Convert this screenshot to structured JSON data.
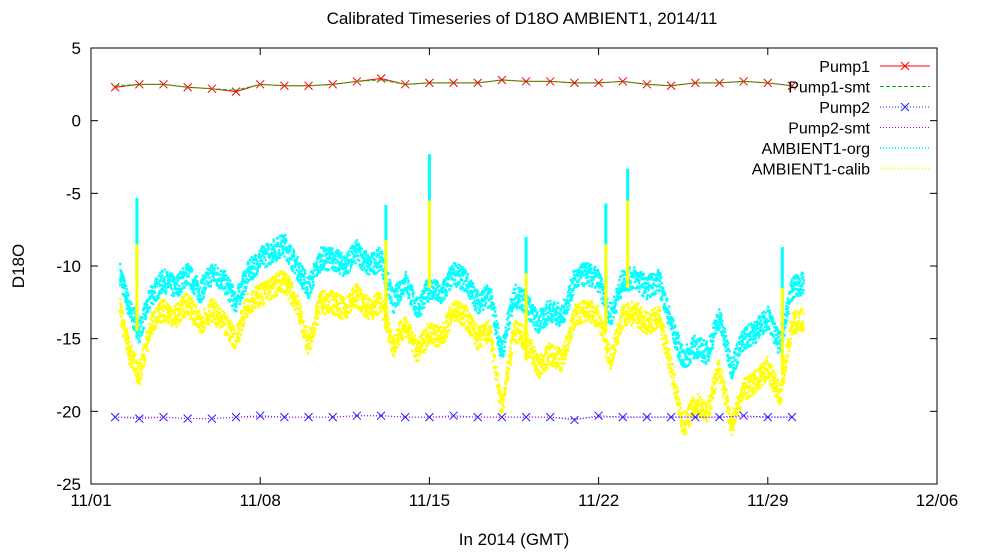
{
  "chart_data": {
    "type": "line",
    "title": "Calibrated Timeseries of D18O AMBIENT1, 2014/11",
    "xlabel": "In 2014 (GMT)",
    "ylabel": "D18O",
    "xlim": [
      "2014-11-01",
      "2014-12-06"
    ],
    "ylim": [
      -25,
      5
    ],
    "x_ticks": [
      "11/01",
      "11/08",
      "11/15",
      "11/22",
      "11/29",
      "12/06"
    ],
    "y_ticks": [
      "5",
      "0",
      "-5",
      "-10",
      "-15",
      "-20",
      "-25"
    ],
    "grid": false,
    "legend_position": "top-right",
    "series": [
      {
        "name": "Pump1",
        "color": "#ff0000",
        "marker": "x",
        "line": "solid",
        "x": [
          "2014-11-02",
          "2014-11-03",
          "2014-11-04",
          "2014-11-05",
          "2014-11-06",
          "2014-11-07",
          "2014-11-08",
          "2014-11-09",
          "2014-11-10",
          "2014-11-11",
          "2014-11-12",
          "2014-11-13",
          "2014-11-14",
          "2014-11-15",
          "2014-11-16",
          "2014-11-17",
          "2014-11-18",
          "2014-11-19",
          "2014-11-20",
          "2014-11-21",
          "2014-11-22",
          "2014-11-23",
          "2014-11-24",
          "2014-11-25",
          "2014-11-26",
          "2014-11-27",
          "2014-11-28",
          "2014-11-29",
          "2014-11-30"
        ],
        "values": [
          2.3,
          2.5,
          2.5,
          2.3,
          2.2,
          2.0,
          2.5,
          2.4,
          2.4,
          2.5,
          2.7,
          2.9,
          2.5,
          2.6,
          2.6,
          2.6,
          2.8,
          2.7,
          2.7,
          2.6,
          2.6,
          2.7,
          2.5,
          2.4,
          2.6,
          2.6,
          2.7,
          2.6,
          2.4
        ]
      },
      {
        "name": "Pump1-smt",
        "color": "#00c000",
        "marker": "none",
        "line": "dashed",
        "x": [
          "2014-11-02",
          "2014-11-03",
          "2014-11-04",
          "2014-11-05",
          "2014-11-06",
          "2014-11-07",
          "2014-11-08",
          "2014-11-09",
          "2014-11-10",
          "2014-11-11",
          "2014-11-12",
          "2014-11-13",
          "2014-11-14",
          "2014-11-15",
          "2014-11-16",
          "2014-11-17",
          "2014-11-18",
          "2014-11-19",
          "2014-11-20",
          "2014-11-21",
          "2014-11-22",
          "2014-11-23",
          "2014-11-24",
          "2014-11-25",
          "2014-11-26",
          "2014-11-27",
          "2014-11-28",
          "2014-11-29",
          "2014-11-30"
        ],
        "values": [
          2.4,
          2.5,
          2.5,
          2.3,
          2.2,
          2.1,
          2.5,
          2.4,
          2.4,
          2.5,
          2.7,
          2.8,
          2.5,
          2.6,
          2.6,
          2.6,
          2.8,
          2.7,
          2.7,
          2.6,
          2.6,
          2.7,
          2.5,
          2.4,
          2.6,
          2.6,
          2.7,
          2.6,
          2.4
        ]
      },
      {
        "name": "Pump2",
        "color": "#2020ff",
        "marker": "x",
        "line": "dotted",
        "x": [
          "2014-11-02",
          "2014-11-03",
          "2014-11-04",
          "2014-11-05",
          "2014-11-06",
          "2014-11-07",
          "2014-11-08",
          "2014-11-09",
          "2014-11-10",
          "2014-11-11",
          "2014-11-12",
          "2014-11-13",
          "2014-11-14",
          "2014-11-15",
          "2014-11-16",
          "2014-11-17",
          "2014-11-18",
          "2014-11-19",
          "2014-11-20",
          "2014-11-21",
          "2014-11-22",
          "2014-11-23",
          "2014-11-24",
          "2014-11-25",
          "2014-11-26",
          "2014-11-27",
          "2014-11-28",
          "2014-11-29",
          "2014-11-30"
        ],
        "values": [
          -20.4,
          -20.5,
          -20.4,
          -20.5,
          -20.5,
          -20.4,
          -20.3,
          -20.4,
          -20.4,
          -20.4,
          -20.3,
          -20.3,
          -20.4,
          -20.4,
          -20.3,
          -20.4,
          -20.4,
          -20.4,
          -20.4,
          -20.6,
          -20.3,
          -20.4,
          -20.4,
          -20.4,
          -20.4,
          -20.4,
          -20.3,
          -20.4,
          -20.4
        ]
      },
      {
        "name": "Pump2-smt",
        "color": "#c000ff",
        "marker": "none",
        "line": "dotted",
        "x": [
          "2014-11-02",
          "2014-11-03",
          "2014-11-04",
          "2014-11-05",
          "2014-11-06",
          "2014-11-07",
          "2014-11-08",
          "2014-11-09",
          "2014-11-10",
          "2014-11-11",
          "2014-11-12",
          "2014-11-13",
          "2014-11-14",
          "2014-11-15",
          "2014-11-16",
          "2014-11-17",
          "2014-11-18",
          "2014-11-19",
          "2014-11-20",
          "2014-11-21",
          "2014-11-22",
          "2014-11-23",
          "2014-11-24",
          "2014-11-25",
          "2014-11-26",
          "2014-11-27",
          "2014-11-28",
          "2014-11-29",
          "2014-11-30"
        ],
        "values": [
          -20.4,
          -20.4,
          -20.4,
          -20.5,
          -20.5,
          -20.4,
          -20.4,
          -20.4,
          -20.4,
          -20.4,
          -20.3,
          -20.3,
          -20.4,
          -20.4,
          -20.4,
          -20.4,
          -20.4,
          -20.4,
          -20.4,
          -20.5,
          -20.4,
          -20.4,
          -20.4,
          -20.4,
          -20.4,
          -20.4,
          -20.4,
          -20.4,
          -20.4
        ]
      },
      {
        "name": "AMBIENT1-org",
        "color": "#00ffff",
        "marker": "dot",
        "line": "dotted",
        "x": [
          "2014-11-02.2",
          "2014-11-02.6",
          "2014-11-03.0",
          "2014-11-03.5",
          "2014-11-04.0",
          "2014-11-04.5",
          "2014-11-05.0",
          "2014-11-05.5",
          "2014-11-06.0",
          "2014-11-06.5",
          "2014-11-07.0",
          "2014-11-07.5",
          "2014-11-08.0",
          "2014-11-08.5",
          "2014-11-09.0",
          "2014-11-09.5",
          "2014-11-10.0",
          "2014-11-10.5",
          "2014-11-11.0",
          "2014-11-11.5",
          "2014-11-12.0",
          "2014-11-12.5",
          "2014-11-13.0",
          "2014-11-13.5",
          "2014-11-14.0",
          "2014-11-14.5",
          "2014-11-15.0",
          "2014-11-15.5",
          "2014-11-16.0",
          "2014-11-16.5",
          "2014-11-17.0",
          "2014-11-17.5",
          "2014-11-18.0",
          "2014-11-18.5",
          "2014-11-19.0",
          "2014-11-19.5",
          "2014-11-20.0",
          "2014-11-20.5",
          "2014-11-21.0",
          "2014-11-21.5",
          "2014-11-22.0",
          "2014-11-22.5",
          "2014-11-23.0",
          "2014-11-23.5",
          "2014-11-24.0",
          "2014-11-24.5",
          "2014-11-25.0",
          "2014-11-25.5",
          "2014-11-26.0",
          "2014-11-26.5",
          "2014-11-27.0",
          "2014-11-27.5",
          "2014-11-28.0",
          "2014-11-28.5",
          "2014-11-29.0",
          "2014-11-29.5",
          "2014-11-30.0",
          "2014-11-30.5"
        ],
        "values": [
          -10.5,
          -13.0,
          -14.5,
          -12.0,
          -11.0,
          -11.5,
          -10.5,
          -11.8,
          -10.5,
          -11.0,
          -12.5,
          -10.5,
          -9.5,
          -9.0,
          -8.5,
          -10.0,
          -11.5,
          -9.5,
          -9.5,
          -10.0,
          -9.0,
          -10.0,
          -9.5,
          -12.5,
          -11.0,
          -13.0,
          -11.5,
          -12.0,
          -10.5,
          -11.0,
          -12.5,
          -12.0,
          -16.0,
          -12.0,
          -12.5,
          -14.0,
          -13.0,
          -13.5,
          -11.0,
          -10.5,
          -11.0,
          -13.5,
          -11.0,
          -10.8,
          -11.5,
          -11.0,
          -14.0,
          -16.5,
          -15.5,
          -16.0,
          -13.5,
          -17.0,
          -15.0,
          -14.5,
          -13.5,
          -15.5,
          -11.5,
          -11.2
        ]
      },
      {
        "name": "AMBIENT1-calib",
        "color": "#ffff00",
        "marker": "dot",
        "line": "dotted",
        "x": [
          "2014-11-02.2",
          "2014-11-02.6",
          "2014-11-03.0",
          "2014-11-03.5",
          "2014-11-04.0",
          "2014-11-04.5",
          "2014-11-05.0",
          "2014-11-05.5",
          "2014-11-06.0",
          "2014-11-06.5",
          "2014-11-07.0",
          "2014-11-07.5",
          "2014-11-08.0",
          "2014-11-08.5",
          "2014-11-09.0",
          "2014-11-09.5",
          "2014-11-10.0",
          "2014-11-10.5",
          "2014-11-11.0",
          "2014-11-11.5",
          "2014-11-12.0",
          "2014-11-12.5",
          "2014-11-13.0",
          "2014-11-13.5",
          "2014-11-14.0",
          "2014-11-14.5",
          "2014-11-15.0",
          "2014-11-15.5",
          "2014-11-16.0",
          "2014-11-16.5",
          "2014-11-17.0",
          "2014-11-17.5",
          "2014-11-18.0",
          "2014-11-18.5",
          "2014-11-19.0",
          "2014-11-19.5",
          "2014-11-20.0",
          "2014-11-20.5",
          "2014-11-21.0",
          "2014-11-21.5",
          "2014-11-22.0",
          "2014-11-22.5",
          "2014-11-23.0",
          "2014-11-23.5",
          "2014-11-24.0",
          "2014-11-24.5",
          "2014-11-25.0",
          "2014-11-25.5",
          "2014-11-26.0",
          "2014-11-26.5",
          "2014-11-27.0",
          "2014-11-27.5",
          "2014-11-28.0",
          "2014-11-28.5",
          "2014-11-29.0",
          "2014-11-29.5",
          "2014-11-30.0",
          "2014-11-30.5"
        ],
        "values": [
          -13.0,
          -16.0,
          -17.5,
          -14.0,
          -13.0,
          -13.5,
          -12.5,
          -14.0,
          -13.0,
          -14.0,
          -15.0,
          -12.5,
          -12.0,
          -11.5,
          -11.0,
          -12.5,
          -15.5,
          -12.5,
          -12.5,
          -13.0,
          -12.0,
          -13.0,
          -12.5,
          -15.5,
          -14.0,
          -16.0,
          -14.5,
          -15.0,
          -13.0,
          -13.5,
          -15.0,
          -14.5,
          -20.0,
          -14.5,
          -15.0,
          -17.0,
          -16.0,
          -16.5,
          -13.5,
          -13.0,
          -13.5,
          -16.5,
          -13.5,
          -13.2,
          -14.0,
          -13.5,
          -17.0,
          -21.0,
          -19.5,
          -20.0,
          -17.0,
          -21.0,
          -18.5,
          -18.0,
          -17.0,
          -19.0,
          -14.0,
          -13.7
        ]
      }
    ]
  }
}
